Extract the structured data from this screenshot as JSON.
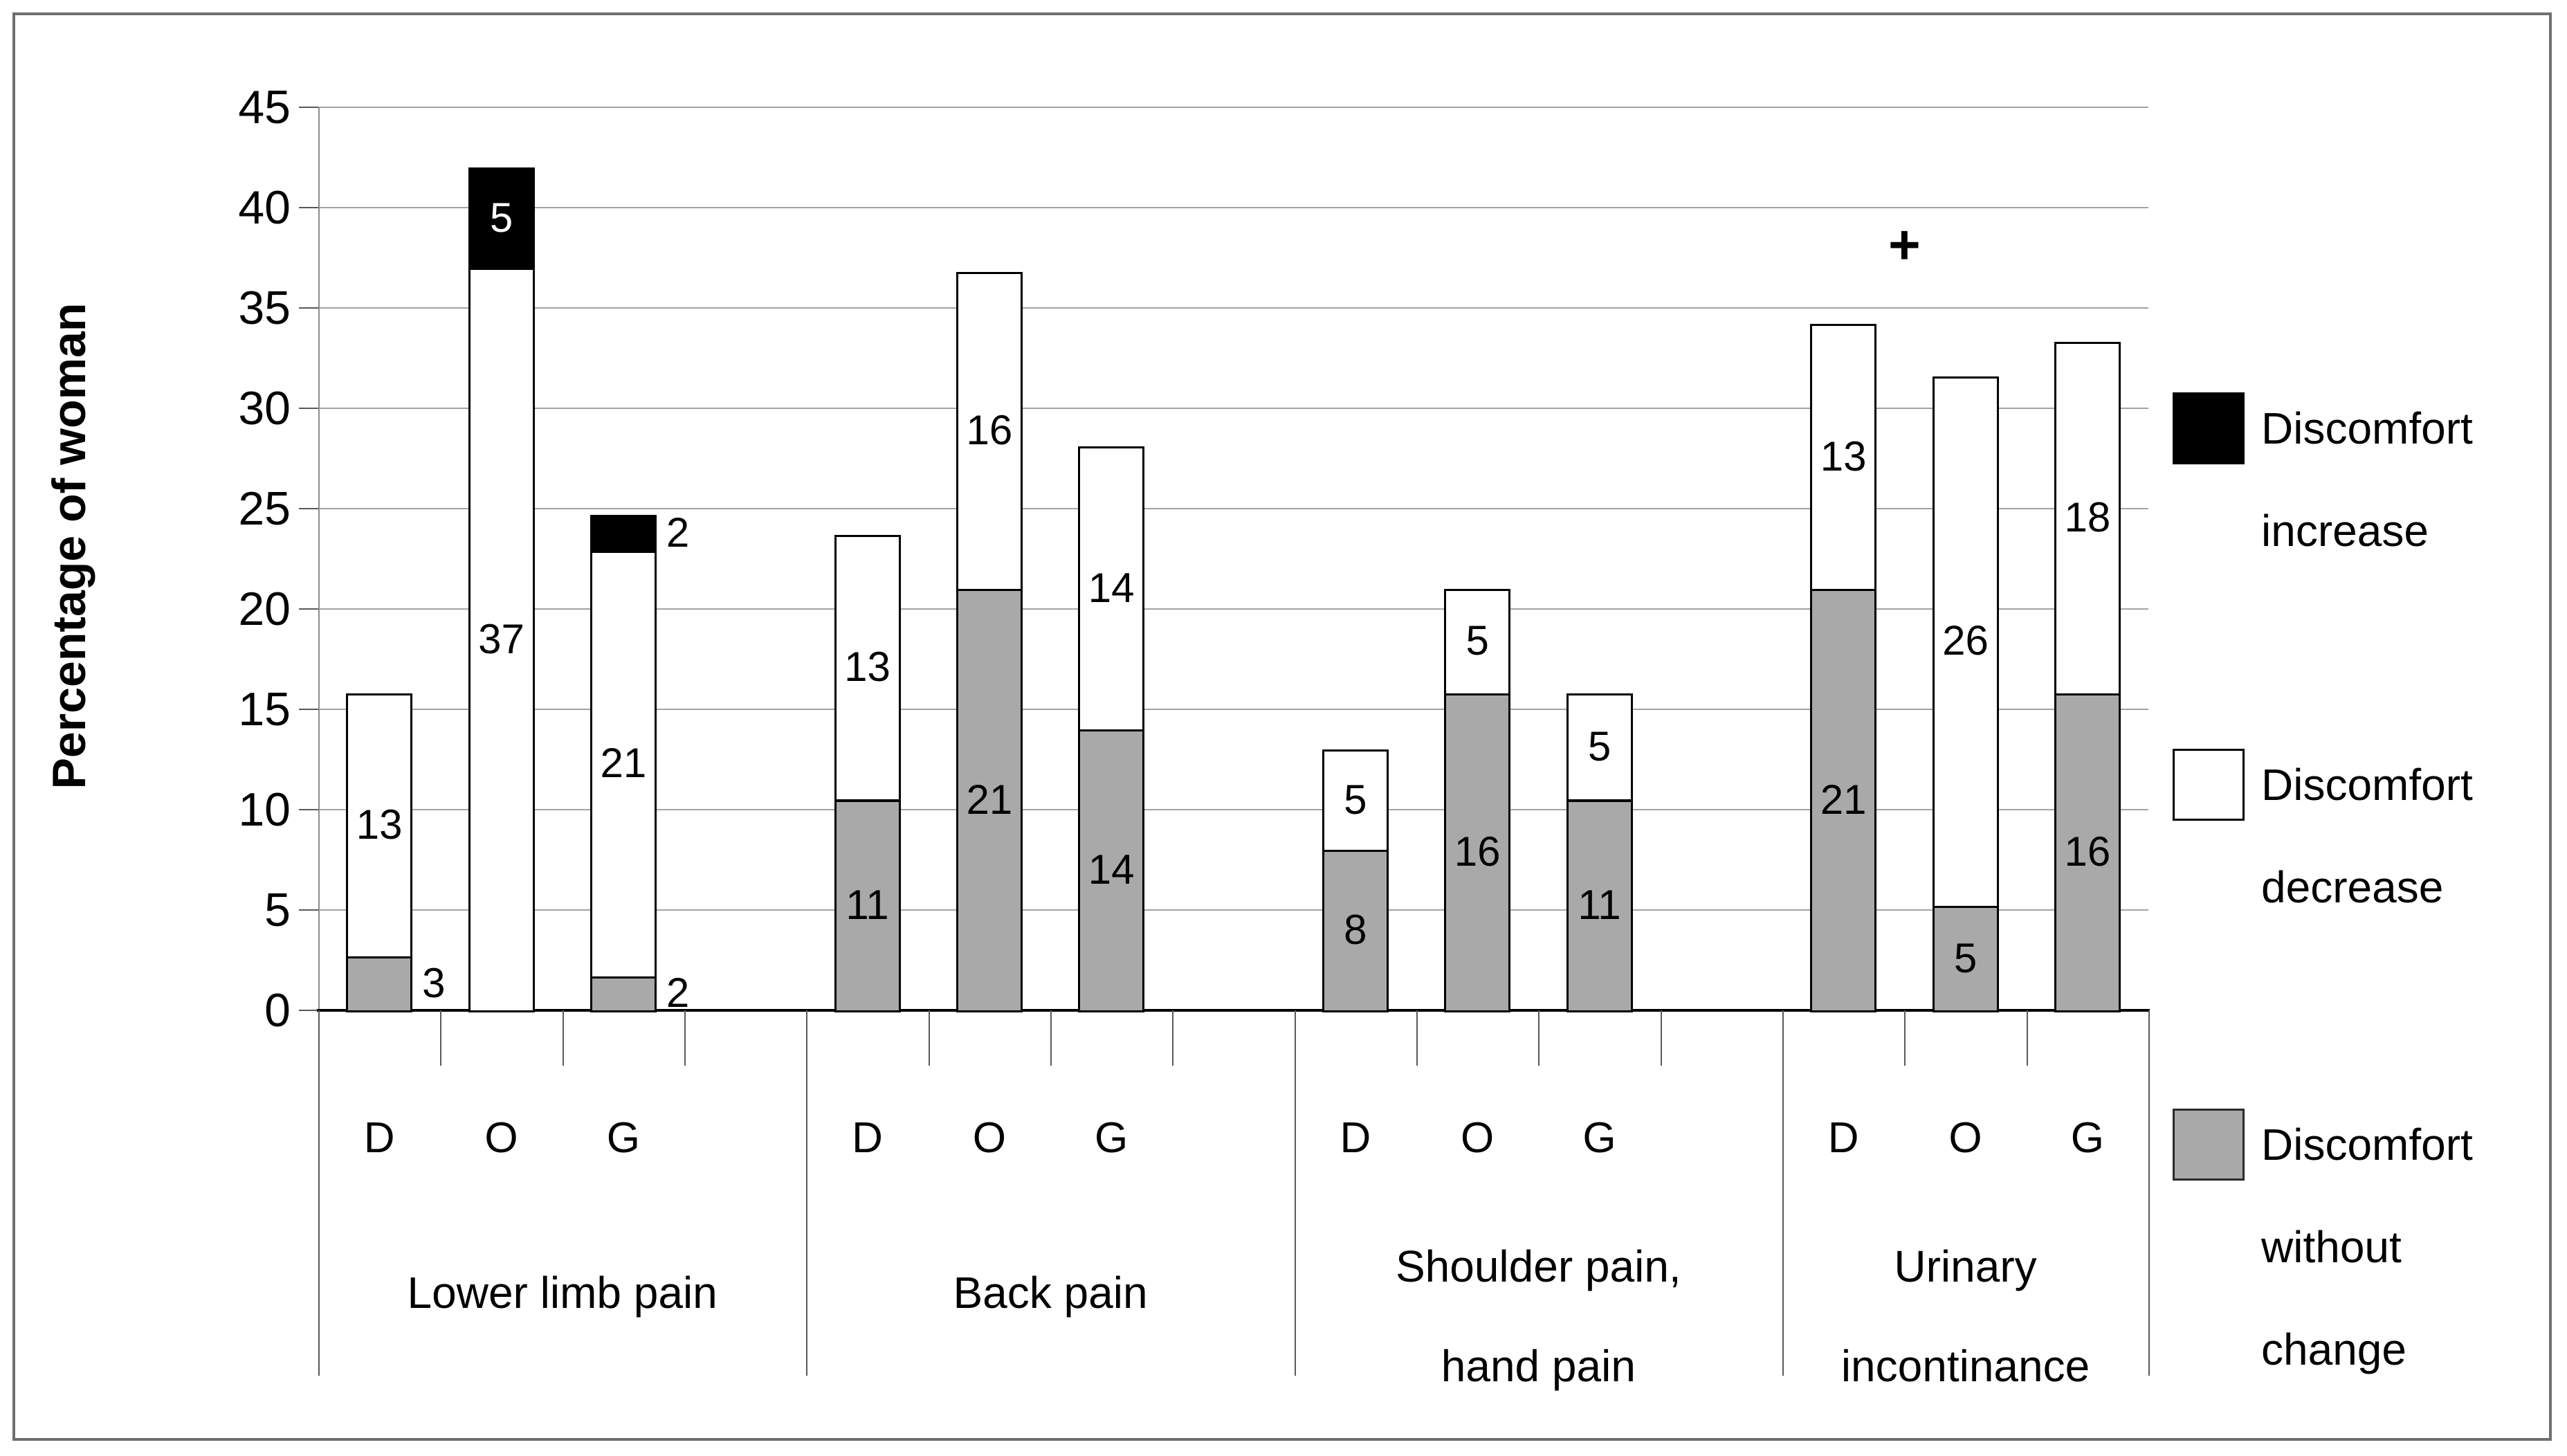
{
  "chart_data": {
    "type": "bar",
    "stacked": true,
    "title": "",
    "ylabel": "Percentage of woman",
    "xlabel": "",
    "ylim": [
      0,
      45
    ],
    "yticks": [
      "0",
      "5",
      "10",
      "15",
      "20",
      "25",
      "30",
      "35",
      "40",
      "45"
    ],
    "grid": true,
    "legend_position": "right",
    "series": [
      {
        "key": "increase",
        "label": "Discomfort increase",
        "color": "#000000"
      },
      {
        "key": "decrease",
        "label": "Discomfort decrease",
        "color": "#ffffff"
      },
      {
        "key": "without_change",
        "label": "Discomfort without change",
        "color": "#a9a9a9"
      }
    ],
    "legend_label_lines": [
      [
        "Discomfort",
        "increase"
      ],
      [
        "Discomfort",
        "decrease"
      ],
      [
        "Discomfort",
        "without",
        "change"
      ]
    ],
    "bar_letters": [
      "D",
      "O",
      "G"
    ],
    "groups": [
      {
        "label_lines": [
          "Lower limb pain"
        ],
        "bars": [
          {
            "cat": "D",
            "segments": [
              {
                "series": "without_change",
                "value": 3,
                "h": 2.7,
                "label": "3",
                "label_pos": "out"
              },
              {
                "series": "decrease",
                "value": 13,
                "h": 13.1,
                "label": "13",
                "label_pos": "in"
              }
            ]
          },
          {
            "cat": "O",
            "segments": [
              {
                "series": "decrease",
                "value": 37,
                "h": 37,
                "label": "37",
                "label_pos": "in"
              },
              {
                "series": "increase",
                "value": 5,
                "h": 5,
                "label": "5",
                "label_pos": "in"
              }
            ]
          },
          {
            "cat": "G",
            "segments": [
              {
                "series": "without_change",
                "value": 2,
                "h": 1.7,
                "label": "2",
                "label_pos": "out"
              },
              {
                "series": "decrease",
                "value": 21,
                "h": 21.2,
                "label": "21",
                "label_pos": "in"
              },
              {
                "series": "increase",
                "value": 2,
                "h": 1.8,
                "label": "2",
                "label_pos": "out"
              }
            ]
          }
        ]
      },
      {
        "label_lines": [
          "Back pain"
        ],
        "bars": [
          {
            "cat": "D",
            "segments": [
              {
                "series": "without_change",
                "value": 11,
                "h": 10.5,
                "label": "11",
                "label_pos": "in"
              },
              {
                "series": "decrease",
                "value": 13,
                "h": 13.2,
                "label": "13",
                "label_pos": "in"
              }
            ]
          },
          {
            "cat": "O",
            "segments": [
              {
                "series": "without_change",
                "value": 21,
                "h": 21,
                "label": "21",
                "label_pos": "in"
              },
              {
                "series": "decrease",
                "value": 16,
                "h": 15.8,
                "label": "16",
                "label_pos": "in"
              }
            ]
          },
          {
            "cat": "G",
            "segments": [
              {
                "series": "without_change",
                "value": 14,
                "h": 14,
                "label": "14",
                "label_pos": "in"
              },
              {
                "series": "decrease",
                "value": 14,
                "h": 14.1,
                "label": "14",
                "label_pos": "in"
              }
            ]
          }
        ]
      },
      {
        "label_lines": [
          "Shoulder pain,",
          "hand pain"
        ],
        "bars": [
          {
            "cat": "D",
            "segments": [
              {
                "series": "without_change",
                "value": 8,
                "h": 8,
                "label": "8",
                "label_pos": "in"
              },
              {
                "series": "decrease",
                "value": 5,
                "h": 5,
                "label": "5",
                "label_pos": "in"
              }
            ]
          },
          {
            "cat": "O",
            "segments": [
              {
                "series": "without_change",
                "value": 16,
                "h": 15.8,
                "label": "16",
                "label_pos": "in"
              },
              {
                "series": "decrease",
                "value": 5,
                "h": 5.2,
                "label": "5",
                "label_pos": "in"
              }
            ]
          },
          {
            "cat": "G",
            "segments": [
              {
                "series": "without_change",
                "value": 11,
                "h": 10.5,
                "label": "11",
                "label_pos": "in"
              },
              {
                "series": "decrease",
                "value": 5,
                "h": 5.3,
                "label": "5",
                "label_pos": "in"
              }
            ]
          }
        ]
      },
      {
        "label_lines": [
          "Urinary",
          "incontinance"
        ],
        "bars": [
          {
            "cat": "D",
            "segments": [
              {
                "series": "without_change",
                "value": 21,
                "h": 21,
                "label": "21",
                "label_pos": "in"
              },
              {
                "series": "decrease",
                "value": 13,
                "h": 13.2,
                "label": "13",
                "label_pos": "in"
              }
            ]
          },
          {
            "cat": "O",
            "segments": [
              {
                "series": "without_change",
                "value": 5,
                "h": 5.2,
                "label": "5",
                "label_pos": "in"
              },
              {
                "series": "decrease",
                "value": 26,
                "h": 26.4,
                "label": "26",
                "label_pos": "in"
              }
            ]
          },
          {
            "cat": "G",
            "segments": [
              {
                "series": "without_change",
                "value": 16,
                "h": 15.8,
                "label": "16",
                "label_pos": "in"
              },
              {
                "series": "decrease",
                "value": 18,
                "h": 17.5,
                "label": "18",
                "label_pos": "in"
              }
            ]
          }
        ]
      }
    ],
    "annotations": [
      {
        "text": "+",
        "group_index": 3,
        "between_categories": [
          "D",
          "O"
        ],
        "value": 38
      }
    ]
  },
  "style_colors": {
    "grid": "#a3a3a3",
    "axis_gray": "#8c8c8c",
    "bar_border": "#000000",
    "outer_border": "#6f6f6f",
    "gray_fill": "#a9a9a9"
  }
}
